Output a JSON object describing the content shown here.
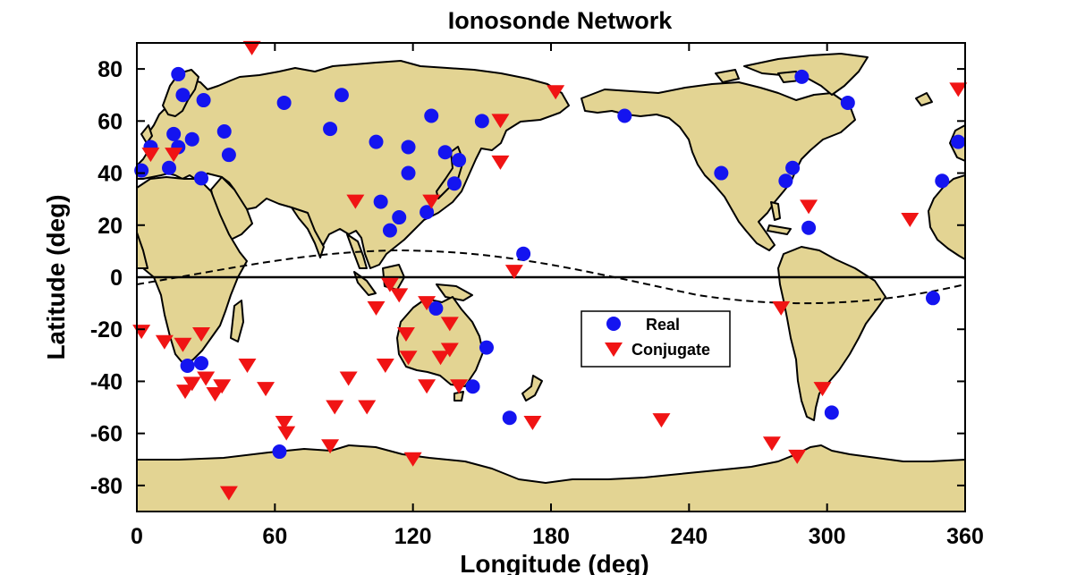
{
  "chart_data": {
    "type": "scatter",
    "title": "Ionosonde Network",
    "xlabel": "Longitude (deg)",
    "ylabel": "Latitude (deg)",
    "xlim": [
      0,
      360
    ],
    "ylim": [
      -90,
      90
    ],
    "xticks": [
      "0",
      "60",
      "120",
      "180",
      "240",
      "300",
      "360"
    ],
    "yticks": [
      "80",
      "60",
      "40",
      "20",
      "0",
      "-20",
      "-40",
      "-60",
      "-80"
    ],
    "grid": false,
    "legend": "center-right",
    "series": [
      {
        "name": "Real",
        "marker": "circle",
        "color": "#1414f0",
        "points": [
          [
            2,
            41
          ],
          [
            6,
            50
          ],
          [
            18,
            78
          ],
          [
            16,
            55
          ],
          [
            20,
            70
          ],
          [
            24,
            53
          ],
          [
            28,
            38
          ],
          [
            18,
            50
          ],
          [
            14,
            42
          ],
          [
            29,
            68
          ],
          [
            38,
            56
          ],
          [
            40,
            47
          ],
          [
            62,
            -67
          ],
          [
            64,
            67
          ],
          [
            84,
            57
          ],
          [
            89,
            70
          ],
          [
            104,
            52
          ],
          [
            106,
            29
          ],
          [
            110,
            18
          ],
          [
            114,
            23
          ],
          [
            118,
            40
          ],
          [
            118,
            50
          ],
          [
            126,
            25
          ],
          [
            128,
            62
          ],
          [
            130,
            -12
          ],
          [
            134,
            48
          ],
          [
            138,
            36
          ],
          [
            140,
            45
          ],
          [
            146,
            -42
          ],
          [
            150,
            60
          ],
          [
            152,
            -27
          ],
          [
            162,
            -54
          ],
          [
            168,
            9
          ],
          [
            212,
            62
          ],
          [
            254,
            40
          ],
          [
            282,
            37
          ],
          [
            285,
            42
          ],
          [
            289,
            77
          ],
          [
            292,
            19
          ],
          [
            302,
            -52
          ],
          [
            309,
            67
          ],
          [
            346,
            -8
          ],
          [
            350,
            37
          ],
          [
            357,
            52
          ],
          [
            22,
            -34
          ],
          [
            28,
            -33
          ]
        ]
      },
      {
        "name": "Conjugate",
        "marker": "triangle-down",
        "color": "#f01414",
        "points": [
          [
            50,
            88
          ],
          [
            6,
            47
          ],
          [
            16,
            47
          ],
          [
            2,
            -21
          ],
          [
            12,
            -25
          ],
          [
            20,
            -26
          ],
          [
            28,
            -22
          ],
          [
            21,
            -44
          ],
          [
            24,
            -41
          ],
          [
            30,
            -39
          ],
          [
            34,
            -45
          ],
          [
            37,
            -42
          ],
          [
            48,
            -34
          ],
          [
            56,
            -43
          ],
          [
            64,
            -56
          ],
          [
            65,
            -60
          ],
          [
            84,
            -65
          ],
          [
            86,
            -50
          ],
          [
            92,
            -39
          ],
          [
            95,
            29
          ],
          [
            100,
            -50
          ],
          [
            104,
            -12
          ],
          [
            108,
            -34
          ],
          [
            110,
            -3
          ],
          [
            114,
            -7
          ],
          [
            117,
            -22
          ],
          [
            118,
            -31
          ],
          [
            120,
            -70
          ],
          [
            126,
            -42
          ],
          [
            126,
            -10
          ],
          [
            128,
            29
          ],
          [
            132,
            -31
          ],
          [
            136,
            -28
          ],
          [
            136,
            -18
          ],
          [
            140,
            -42
          ],
          [
            158,
            60
          ],
          [
            158,
            44
          ],
          [
            164,
            2
          ],
          [
            172,
            -56
          ],
          [
            182,
            71
          ],
          [
            228,
            -55
          ],
          [
            276,
            -64
          ],
          [
            280,
            -12
          ],
          [
            287,
            -69
          ],
          [
            292,
            27
          ],
          [
            298,
            -43
          ],
          [
            336,
            22
          ],
          [
            357,
            72
          ],
          [
            40,
            -83
          ]
        ]
      }
    ]
  }
}
